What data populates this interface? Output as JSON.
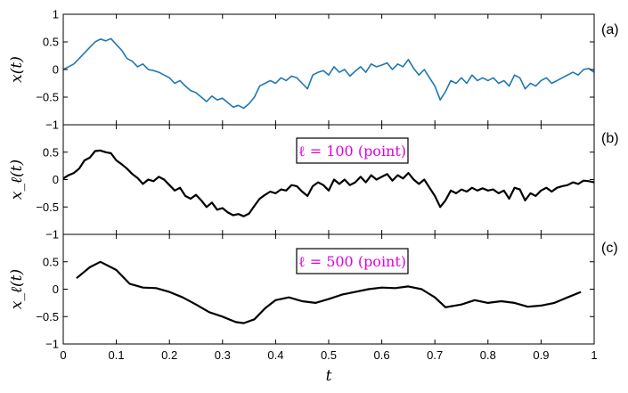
{
  "chart_data": [
    {
      "type": "line",
      "panel_label": "(a)",
      "ylabel": "x(t)",
      "xlim": [
        0,
        1
      ],
      "ylim": [
        -1,
        1
      ],
      "yticks": [
        -1,
        -0.5,
        0,
        0.5,
        1
      ],
      "ytick_labels": [
        "−1",
        "−0.5",
        "0",
        "0.5",
        "1"
      ],
      "series": [
        {
          "color": "#1f77b4",
          "x": [
            0,
            0.01,
            0.02,
            0.03,
            0.04,
            0.05,
            0.06,
            0.07,
            0.08,
            0.09,
            0.1,
            0.11,
            0.12,
            0.13,
            0.14,
            0.15,
            0.16,
            0.17,
            0.18,
            0.19,
            0.2,
            0.21,
            0.22,
            0.23,
            0.24,
            0.25,
            0.26,
            0.27,
            0.28,
            0.29,
            0.3,
            0.31,
            0.32,
            0.33,
            0.34,
            0.35,
            0.36,
            0.37,
            0.38,
            0.39,
            0.4,
            0.41,
            0.42,
            0.43,
            0.44,
            0.45,
            0.46,
            0.47,
            0.48,
            0.49,
            0.5,
            0.51,
            0.52,
            0.53,
            0.54,
            0.55,
            0.56,
            0.57,
            0.58,
            0.59,
            0.6,
            0.61,
            0.62,
            0.63,
            0.64,
            0.65,
            0.66,
            0.67,
            0.68,
            0.69,
            0.7,
            0.71,
            0.72,
            0.73,
            0.74,
            0.75,
            0.76,
            0.77,
            0.78,
            0.79,
            0.8,
            0.81,
            0.82,
            0.83,
            0.84,
            0.85,
            0.86,
            0.87,
            0.88,
            0.89,
            0.9,
            0.91,
            0.92,
            0.93,
            0.94,
            0.95,
            0.96,
            0.97,
            0.98,
            0.99,
            1.0
          ],
          "y": [
            0.0,
            0.05,
            0.1,
            0.2,
            0.3,
            0.4,
            0.5,
            0.55,
            0.52,
            0.56,
            0.45,
            0.35,
            0.2,
            0.15,
            0.05,
            0.1,
            0.0,
            -0.02,
            -0.05,
            -0.1,
            -0.15,
            -0.25,
            -0.2,
            -0.3,
            -0.38,
            -0.42,
            -0.5,
            -0.58,
            -0.48,
            -0.55,
            -0.52,
            -0.6,
            -0.68,
            -0.65,
            -0.7,
            -0.62,
            -0.5,
            -0.3,
            -0.25,
            -0.2,
            -0.25,
            -0.15,
            -0.2,
            -0.12,
            -0.15,
            -0.25,
            -0.35,
            -0.1,
            -0.05,
            -0.02,
            -0.1,
            0.05,
            -0.05,
            0.0,
            -0.12,
            -0.03,
            0.05,
            -0.05,
            0.1,
            0.05,
            0.08,
            0.12,
            0.0,
            0.1,
            0.05,
            0.18,
            0.02,
            -0.1,
            0.0,
            -0.15,
            -0.3,
            -0.55,
            -0.4,
            -0.2,
            -0.25,
            -0.15,
            -0.25,
            -0.1,
            -0.2,
            -0.15,
            -0.2,
            -0.15,
            -0.25,
            -0.2,
            -0.3,
            -0.1,
            -0.15,
            -0.35,
            -0.25,
            -0.3,
            -0.2,
            -0.15,
            -0.25,
            -0.2,
            -0.15,
            -0.1,
            -0.05,
            -0.1,
            0.0,
            0.02,
            -0.05
          ]
        }
      ]
    },
    {
      "type": "line",
      "panel_label": "(b)",
      "ylabel": "x_ℓ(t)",
      "annotation": "ℓ = 100 (point)",
      "xlim": [
        0,
        1
      ],
      "ylim": [
        -1,
        1
      ],
      "yticks": [
        -1,
        -0.5,
        0,
        0.5
      ],
      "ytick_labels": [
        "−1",
        "−0.5",
        "0",
        "0.5"
      ],
      "series": [
        {
          "color": "#000000",
          "x": [
            0,
            0.01,
            0.02,
            0.03,
            0.04,
            0.05,
            0.06,
            0.07,
            0.08,
            0.09,
            0.1,
            0.11,
            0.12,
            0.13,
            0.14,
            0.15,
            0.16,
            0.17,
            0.18,
            0.19,
            0.2,
            0.21,
            0.22,
            0.23,
            0.24,
            0.25,
            0.26,
            0.27,
            0.28,
            0.29,
            0.3,
            0.31,
            0.32,
            0.33,
            0.34,
            0.35,
            0.36,
            0.37,
            0.38,
            0.39,
            0.4,
            0.41,
            0.42,
            0.43,
            0.44,
            0.45,
            0.46,
            0.47,
            0.48,
            0.49,
            0.5,
            0.51,
            0.52,
            0.53,
            0.54,
            0.55,
            0.56,
            0.57,
            0.58,
            0.59,
            0.6,
            0.61,
            0.62,
            0.63,
            0.64,
            0.65,
            0.66,
            0.67,
            0.68,
            0.69,
            0.7,
            0.71,
            0.72,
            0.73,
            0.74,
            0.75,
            0.76,
            0.77,
            0.78,
            0.79,
            0.8,
            0.81,
            0.82,
            0.83,
            0.84,
            0.85,
            0.86,
            0.87,
            0.88,
            0.89,
            0.9,
            0.91,
            0.92,
            0.93,
            0.94,
            0.95,
            0.96,
            0.97,
            0.98,
            0.99,
            1.0
          ],
          "y": [
            0.02,
            0.08,
            0.12,
            0.2,
            0.35,
            0.4,
            0.52,
            0.53,
            0.5,
            0.48,
            0.35,
            0.28,
            0.2,
            0.1,
            0.03,
            -0.08,
            0.0,
            -0.03,
            0.05,
            0.0,
            -0.1,
            -0.2,
            -0.15,
            -0.3,
            -0.35,
            -0.28,
            -0.38,
            -0.5,
            -0.42,
            -0.55,
            -0.52,
            -0.6,
            -0.65,
            -0.63,
            -0.67,
            -0.62,
            -0.48,
            -0.35,
            -0.28,
            -0.22,
            -0.25,
            -0.18,
            -0.2,
            -0.1,
            -0.12,
            -0.22,
            -0.3,
            -0.12,
            -0.05,
            -0.1,
            -0.2,
            0.0,
            -0.08,
            0.0,
            -0.1,
            -0.05,
            0.05,
            -0.05,
            0.08,
            0.0,
            0.05,
            0.1,
            -0.02,
            0.08,
            0.02,
            0.12,
            0.0,
            -0.08,
            0.0,
            -0.15,
            -0.3,
            -0.5,
            -0.38,
            -0.2,
            -0.25,
            -0.18,
            -0.22,
            -0.15,
            -0.2,
            -0.16,
            -0.2,
            -0.18,
            -0.25,
            -0.2,
            -0.35,
            -0.15,
            -0.18,
            -0.38,
            -0.25,
            -0.3,
            -0.2,
            -0.15,
            -0.22,
            -0.15,
            -0.12,
            -0.1,
            -0.05,
            -0.08,
            -0.02,
            -0.03,
            -0.05
          ]
        }
      ]
    },
    {
      "type": "line",
      "panel_label": "(c)",
      "ylabel": "x_ℓ(t)",
      "annotation": "ℓ = 500 (point)",
      "xlabel": "t",
      "xlim": [
        0,
        1
      ],
      "ylim": [
        -1,
        1
      ],
      "yticks": [
        -1,
        -0.5,
        0,
        0.5
      ],
      "ytick_labels": [
        "−1",
        "−0.5",
        "0",
        "0.5"
      ],
      "xticks": [
        0,
        0.1,
        0.2,
        0.3,
        0.4,
        0.5,
        0.6,
        0.7,
        0.8,
        0.9,
        1
      ],
      "xtick_labels": [
        "0",
        "0.1",
        "0.2",
        "0.3",
        "0.4",
        "0.5",
        "0.6",
        "0.7",
        "0.8",
        "0.9",
        "1"
      ],
      "series": [
        {
          "color": "#000000",
          "x": [
            0.025,
            0.05,
            0.07,
            0.1,
            0.125,
            0.15,
            0.175,
            0.2,
            0.225,
            0.25,
            0.275,
            0.3,
            0.325,
            0.34,
            0.36,
            0.38,
            0.4,
            0.425,
            0.45,
            0.475,
            0.5,
            0.525,
            0.55,
            0.575,
            0.6,
            0.625,
            0.65,
            0.675,
            0.7,
            0.72,
            0.75,
            0.775,
            0.8,
            0.825,
            0.85,
            0.875,
            0.9,
            0.925,
            0.95,
            0.975
          ],
          "y": [
            0.2,
            0.4,
            0.5,
            0.35,
            0.1,
            0.03,
            0.02,
            -0.05,
            -0.15,
            -0.28,
            -0.42,
            -0.5,
            -0.6,
            -0.62,
            -0.55,
            -0.35,
            -0.2,
            -0.15,
            -0.22,
            -0.25,
            -0.18,
            -0.1,
            -0.05,
            0.0,
            0.03,
            0.02,
            0.05,
            0.0,
            -0.15,
            -0.33,
            -0.28,
            -0.2,
            -0.25,
            -0.22,
            -0.25,
            -0.32,
            -0.3,
            -0.25,
            -0.15,
            -0.05
          ]
        }
      ]
    }
  ]
}
